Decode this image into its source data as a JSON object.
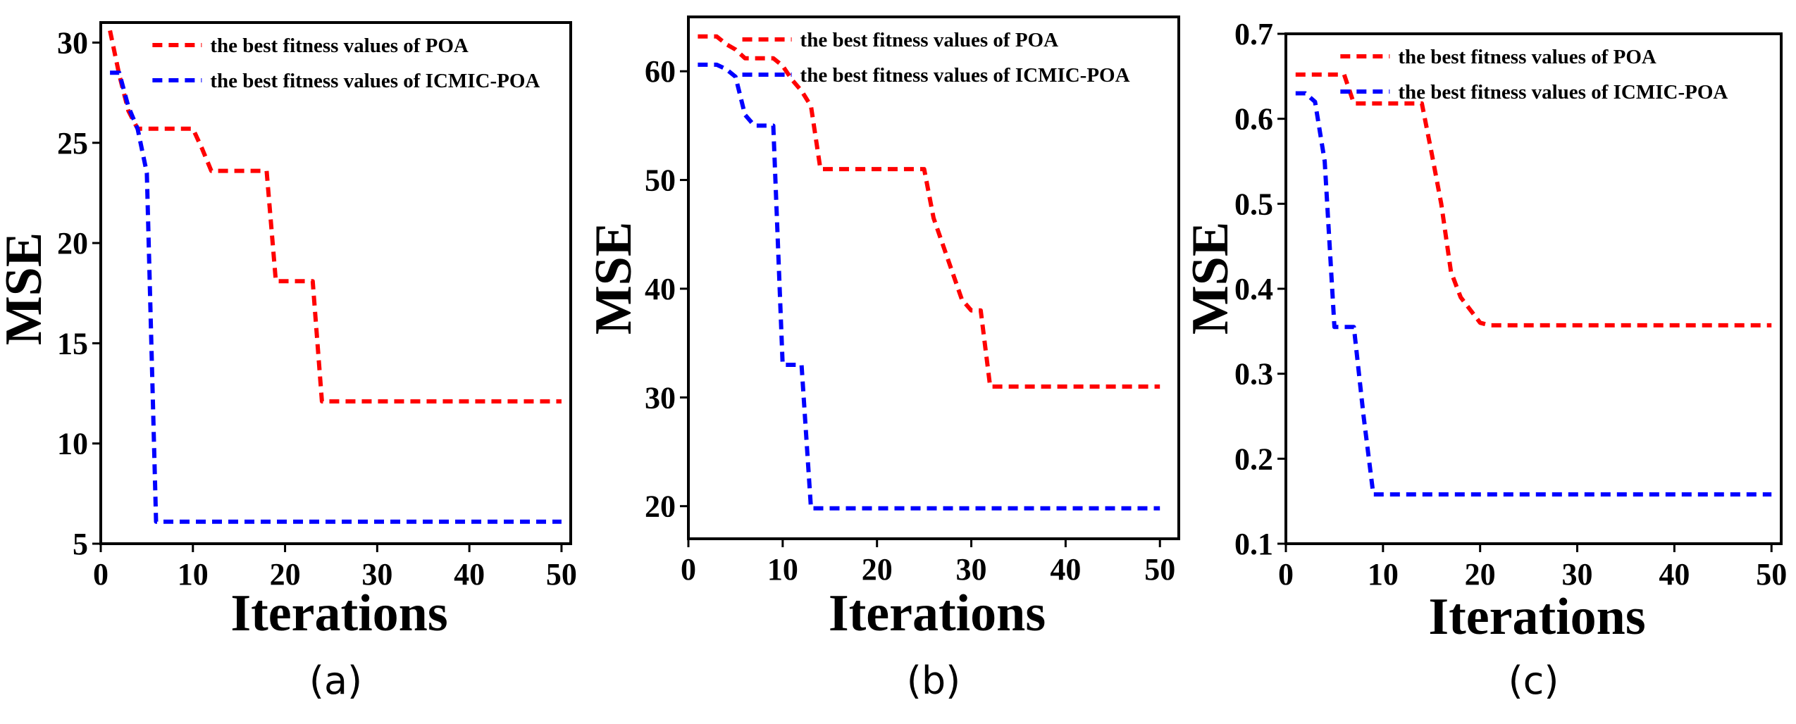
{
  "chart_data": [
    {
      "type": "line",
      "caption": "(a)",
      "xlabel": "Iterations",
      "ylabel": "MSE",
      "xlim": [
        0,
        51
      ],
      "ylim": [
        5,
        31
      ],
      "xticks": [
        0,
        10,
        20,
        30,
        40,
        50
      ],
      "yticks": [
        5,
        10,
        15,
        20,
        25,
        30
      ],
      "legend_position": "top-right",
      "series": [
        {
          "name": "the best fitness values of POA",
          "color": "#ff0000",
          "x": [
            1,
            2,
            3,
            4,
            5,
            6,
            7,
            8,
            9,
            10,
            11,
            12,
            13,
            14,
            15,
            16,
            17,
            18,
            19,
            20,
            21,
            22,
            23,
            24,
            25,
            50
          ],
          "y": [
            30.6,
            28.4,
            26.6,
            25.7,
            25.7,
            25.7,
            25.7,
            25.7,
            25.7,
            25.7,
            24.7,
            23.6,
            23.6,
            23.6,
            23.6,
            23.6,
            23.6,
            23.6,
            18.1,
            18.1,
            18.1,
            18.1,
            18.1,
            12.1,
            12.1,
            12.1
          ]
        },
        {
          "name": "the best fitness values of ICMIC-POA",
          "color": "#0000ff",
          "x": [
            1,
            2,
            3,
            4,
            5,
            6,
            7,
            50
          ],
          "y": [
            28.5,
            28.5,
            26.8,
            25.7,
            23.5,
            6.1,
            6.1,
            6.1
          ]
        }
      ]
    },
    {
      "type": "line",
      "caption": "(b)",
      "xlabel": "Iterations",
      "ylabel": "MSE",
      "xlim": [
        0,
        52
      ],
      "ylim": [
        17,
        65
      ],
      "xticks": [
        0,
        10,
        20,
        30,
        40,
        50
      ],
      "yticks": [
        20,
        30,
        40,
        50,
        60
      ],
      "legend_position": "top-right",
      "series": [
        {
          "name": "the best fitness values of POA",
          "color": "#ff0000",
          "x": [
            1,
            2,
            3,
            4,
            5,
            6,
            7,
            8,
            9,
            10,
            11,
            12,
            13,
            14,
            15,
            25,
            26,
            27,
            28,
            29,
            30,
            31,
            32,
            50
          ],
          "y": [
            63.2,
            63.2,
            63.2,
            62.5,
            62.0,
            61.2,
            61.2,
            61.2,
            61.2,
            60.5,
            59.2,
            58.2,
            56.8,
            51.0,
            51.0,
            51.0,
            46.5,
            44.0,
            41.5,
            39.0,
            38.0,
            38.0,
            31.0,
            31.0
          ]
        },
        {
          "name": "the best fitness values of ICMIC-POA",
          "color": "#0000ff",
          "x": [
            1,
            2,
            3,
            4,
            5,
            6,
            7,
            8,
            9,
            10,
            11,
            12,
            13,
            14,
            50
          ],
          "y": [
            60.6,
            60.6,
            60.6,
            60.2,
            59.5,
            56.0,
            55.0,
            55.0,
            55.0,
            33.0,
            33.0,
            33.0,
            19.8,
            19.8,
            19.8
          ]
        }
      ]
    },
    {
      "type": "line",
      "caption": "(c)",
      "xlabel": "Iterations",
      "ylabel": "MSE",
      "xlim": [
        0,
        51
      ],
      "ylim": [
        0.1,
        0.7
      ],
      "xticks": [
        0,
        10,
        20,
        30,
        40,
        50
      ],
      "yticks": [
        0.1,
        0.2,
        0.3,
        0.4,
        0.5,
        0.6,
        0.7
      ],
      "legend_position": "top-right",
      "series": [
        {
          "name": "the best fitness values of POA",
          "color": "#ff0000",
          "x": [
            1,
            2,
            3,
            4,
            5,
            6,
            7,
            8,
            9,
            10,
            11,
            12,
            13,
            14,
            15,
            16,
            17,
            18,
            19,
            20,
            21,
            50
          ],
          "y": [
            0.652,
            0.652,
            0.652,
            0.652,
            0.652,
            0.652,
            0.618,
            0.618,
            0.618,
            0.618,
            0.618,
            0.618,
            0.618,
            0.618,
            0.56,
            0.5,
            0.42,
            0.39,
            0.375,
            0.36,
            0.357,
            0.357
          ]
        },
        {
          "name": "the best fitness values of ICMIC-POA",
          "color": "#0000ff",
          "x": [
            1,
            2,
            3,
            4,
            5,
            6,
            7,
            8,
            9,
            10,
            50
          ],
          "y": [
            0.63,
            0.63,
            0.62,
            0.55,
            0.355,
            0.355,
            0.355,
            0.25,
            0.158,
            0.158,
            0.158
          ]
        }
      ]
    }
  ]
}
